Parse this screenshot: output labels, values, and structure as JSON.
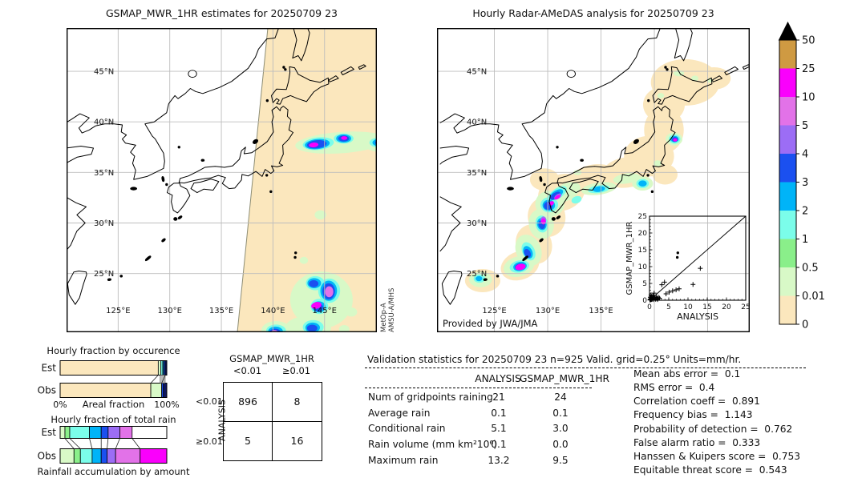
{
  "window": {
    "background": "#ffffff"
  },
  "maps": {
    "left": {
      "title": "GSMAP_MWR_1HR estimates for 20250709 23",
      "lat_ticks": [
        "45°N",
        "40°N",
        "35°N",
        "30°N",
        "25°N"
      ],
      "lon_ticks": [
        "125°E",
        "130°E",
        "135°E",
        "140°E",
        "145°E"
      ],
      "attribution_line1": "MetOp-A",
      "attribution_line2": "AMSU-A/MHS"
    },
    "right": {
      "title": "Hourly Radar-AMeDAS analysis for 20250709 23",
      "lat_ticks": [
        "45°N",
        "40°N",
        "35°N",
        "30°N",
        "25°N"
      ],
      "lon_ticks": [
        "125°E",
        "130°E",
        "135°E"
      ],
      "attribution": "Provided by JWA/JMA"
    }
  },
  "chart_data": [
    {
      "id": "colorbar",
      "type": "colorbar",
      "orientation": "vertical",
      "units": "mm/hr",
      "tick_labels_top_to_bottom": [
        "50",
        "25",
        "10",
        "5",
        "4",
        "3",
        "2",
        "1",
        "0.5",
        "0.01",
        "0"
      ],
      "segment_colors_top_to_bottom": [
        "#cf9a42",
        "#fa00fc",
        "#e272e8",
        "#9c6df5",
        "#1b50f0",
        "#00b4f8",
        "#7bfdea",
        "#8aef8a",
        "#d8f9c7",
        "#fbe7bd"
      ],
      "overflow_triangle_color": "#000000"
    },
    {
      "id": "occurrence",
      "type": "bar",
      "title": "Hourly fraction by occurence",
      "xlabel": "Areal fraction",
      "x_tick_labels": [
        "0%",
        "100%"
      ],
      "rows": [
        {
          "label": "Est",
          "segments": [
            [
              "#fbe7bd",
              0,
              0.92
            ],
            [
              "#d8f9c7",
              0.92,
              0.945
            ],
            [
              "#7bfdea",
              0.945,
              0.962
            ],
            [
              "#00b4f8",
              0.962,
              0.972
            ],
            [
              "#1b50f0",
              0.972,
              0.985
            ],
            [
              "#0e1660",
              0.985,
              1
            ]
          ]
        },
        {
          "label": "Obs",
          "segments": [
            [
              "#fbe7bd",
              0,
              0.85
            ],
            [
              "#d8f9c7",
              0.85,
              0.952
            ],
            [
              "#1b50f0",
              0.952,
              0.968
            ],
            [
              "#0e1660",
              0.968,
              1
            ]
          ]
        }
      ],
      "connectors": [
        [
          0.92,
          0.85
        ],
        [
          0.985,
          0.952
        ]
      ],
      "gray_band": [
        0.938,
        0.985
      ]
    },
    {
      "id": "total_rain",
      "type": "bar",
      "title": "Hourly fraction of total rain",
      "xlabel": "Rainfall accumulation by amount",
      "rows": [
        {
          "label": "Est",
          "segments": [
            [
              "#d8f9c7",
              0,
              0.045
            ],
            [
              "#8aef8a",
              0.045,
              0.09
            ],
            [
              "#7bfdea",
              0.09,
              0.275
            ],
            [
              "#00b4f8",
              0.275,
              0.385
            ],
            [
              "#1b50f0",
              0.385,
              0.45
            ],
            [
              "#9c6df5",
              0.45,
              0.56
            ],
            [
              "#e272e8",
              0.56,
              0.675
            ]
          ]
        },
        {
          "label": "Obs",
          "segments": [
            [
              "#d8f9c7",
              0,
              0.13
            ],
            [
              "#8aef8a",
              0.13,
              0.19
            ],
            [
              "#7bfdea",
              0.19,
              0.3
            ],
            [
              "#00b4f8",
              0.3,
              0.385
            ],
            [
              "#1b50f0",
              0.385,
              0.44
            ],
            [
              "#9c6df5",
              0.44,
              0.52
            ],
            [
              "#e272e8",
              0.52,
              0.75
            ],
            [
              "#fa00fc",
              0.75,
              1
            ]
          ]
        }
      ],
      "connectors": [
        [
          0.045,
          0.13
        ],
        [
          0.09,
          0.19
        ],
        [
          0.275,
          0.3
        ],
        [
          0.385,
          0.385
        ],
        [
          0.45,
          0.44
        ],
        [
          0.56,
          0.52
        ],
        [
          0.675,
          0.75
        ]
      ]
    },
    {
      "id": "contingency",
      "type": "table",
      "col_group_label": "GSMAP_MWR_1HR",
      "row_group_label": "ANALYSIS",
      "col_labels": [
        "<0.01",
        "≥0.01"
      ],
      "row_labels": [
        "<0.01",
        "≥0.01"
      ],
      "values": [
        [
          "896",
          "8"
        ],
        [
          "5",
          "16"
        ]
      ]
    },
    {
      "id": "validation",
      "type": "table",
      "title": "Validation statistics for 20250709 23  n=925 Valid. grid=0.25° Units=mm/hr.",
      "columns": [
        "ANALYSIS",
        "GSMAP_MWR_1HR"
      ],
      "rows": [
        {
          "label": "Num of gridpoints raining",
          "values": [
            "21",
            "24"
          ]
        },
        {
          "label": "Average rain",
          "values": [
            "0.1",
            "0.1"
          ]
        },
        {
          "label": "Conditional rain",
          "values": [
            "5.1",
            "3.0"
          ]
        },
        {
          "label": "Rain volume (mm km²10⁶)",
          "values": [
            "0.1",
            "0.0"
          ]
        },
        {
          "label": "Maximum rain",
          "values": [
            "13.2",
            "9.5"
          ]
        }
      ]
    },
    {
      "id": "summary",
      "type": "table",
      "rows": [
        {
          "label": "Mean abs error",
          "value": "0.1"
        },
        {
          "label": "RMS error",
          "value": "0.4"
        },
        {
          "label": "Correlation coeff",
          "value": "0.891"
        },
        {
          "label": "Frequency bias",
          "value": "1.143"
        },
        {
          "label": "Probability of detection",
          "value": "0.762"
        },
        {
          "label": "False alarm ratio",
          "value": "0.333"
        },
        {
          "label": "Hanssen & Kuipers score",
          "value": "0.753"
        },
        {
          "label": "Equitable threat score",
          "value": "0.543"
        }
      ]
    },
    {
      "id": "scatter",
      "type": "scatter",
      "xlabel": "ANALYSIS",
      "ylabel": "GSMAP_MWR_1HR",
      "xlim": [
        0,
        25
      ],
      "ylim": [
        0,
        25
      ],
      "ticks": [
        0,
        5,
        10,
        15,
        20,
        25
      ],
      "identity_line": true,
      "marker": "+",
      "points": [
        [
          0.1,
          0.1
        ],
        [
          0.2,
          0.3
        ],
        [
          0.2,
          0.9
        ],
        [
          0.3,
          0.15
        ],
        [
          0.4,
          0.5
        ],
        [
          0.4,
          1.6
        ],
        [
          0.5,
          0.2
        ],
        [
          0.6,
          1.1
        ],
        [
          0.7,
          0.3
        ],
        [
          0.9,
          0.6
        ],
        [
          1.0,
          1.4
        ],
        [
          1.1,
          0.2
        ],
        [
          1.2,
          2.1
        ],
        [
          1.4,
          0.8
        ],
        [
          1.6,
          0.3
        ],
        [
          1.8,
          1.0
        ],
        [
          2.0,
          0.5
        ],
        [
          2.1,
          0.2
        ],
        [
          2.3,
          0.9
        ],
        [
          2.6,
          0.6
        ],
        [
          3.2,
          4.6
        ],
        [
          3.9,
          5.4
        ],
        [
          4.3,
          1.9
        ],
        [
          5.1,
          2.4
        ],
        [
          6.0,
          2.8
        ],
        [
          6.9,
          3.1
        ],
        [
          7.7,
          3.4
        ],
        [
          11.3,
          4.7
        ],
        [
          13.2,
          9.5
        ]
      ]
    }
  ]
}
